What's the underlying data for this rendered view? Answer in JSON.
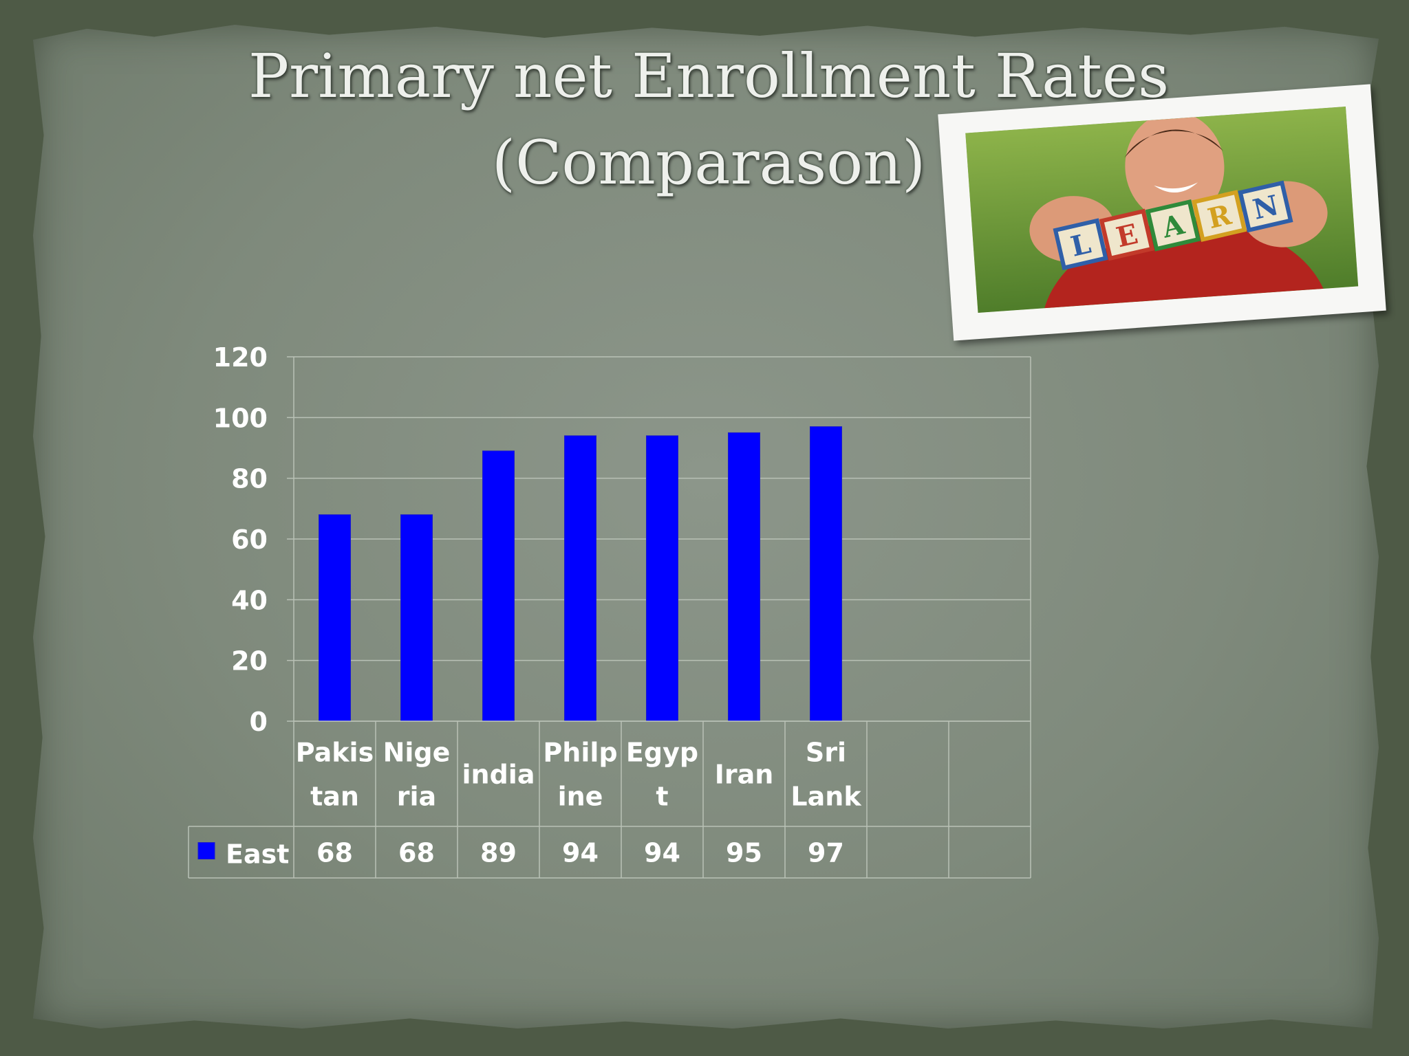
{
  "slide": {
    "title_line1": "Primary net Enrollment Rates",
    "title_line2": "(Comparason)"
  },
  "photo": {
    "blocks": [
      "L",
      "E",
      "A",
      "R",
      "N"
    ]
  },
  "chart_data": {
    "type": "bar",
    "categories": [
      [
        "Pakis",
        "tan"
      ],
      [
        "Nige",
        "ria"
      ],
      [
        "india"
      ],
      [
        "Philp",
        "ine"
      ],
      [
        "Egyp",
        "t"
      ],
      [
        "Iran"
      ],
      [
        "Sri",
        "Lank"
      ],
      [],
      []
    ],
    "series": [
      {
        "name": "East",
        "values": [
          68,
          68,
          89,
          94,
          94,
          95,
          97,
          null,
          null
        ],
        "color": "#0000ff"
      }
    ],
    "yticks": [
      0,
      20,
      40,
      60,
      80,
      100,
      120
    ],
    "ylim": [
      0,
      120
    ],
    "grid": true,
    "data_table": true
  }
}
